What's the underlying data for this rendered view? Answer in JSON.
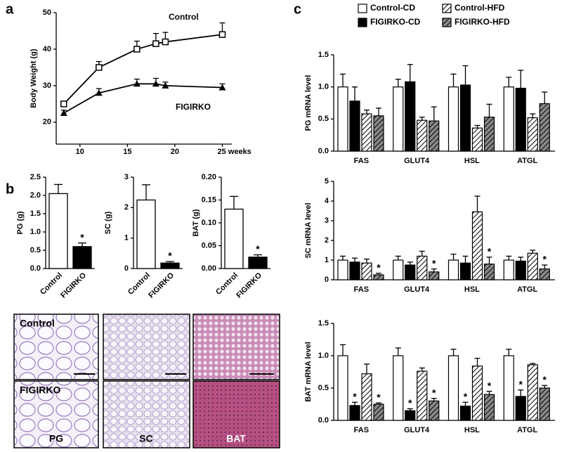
{
  "panel_labels": [
    "a",
    "b",
    "c"
  ],
  "micrographs": {
    "rows": [
      "Control",
      "FIGIRKO"
    ],
    "columns": [
      "PG",
      "SC",
      "BAT"
    ]
  },
  "legend": [
    {
      "name": "Control-CD",
      "color": "#ffffff",
      "hatch": false
    },
    {
      "name": "FIGIRKO-CD",
      "color": "#000000",
      "hatch": false
    },
    {
      "name": "Control-HFD",
      "color": "#ffffff",
      "hatch": true
    },
    {
      "name": "FIGIRKO-HFD",
      "color": "#888888",
      "hatch": true
    }
  ],
  "chart_data": [
    {
      "type": "line",
      "y_label": "Body Weight (g)",
      "x": [
        8.3,
        12,
        16,
        18,
        19,
        25
      ],
      "xlim": [
        7.5,
        26
      ],
      "xticks": [
        10,
        15,
        20,
        {
          "value": 25,
          "label": "25 weeks"
        }
      ],
      "ylim": [
        14,
        50
      ],
      "yticks": [
        20,
        30,
        40,
        50
      ],
      "series": [
        {
          "name": "Control",
          "color": "#000000",
          "marker": "square",
          "values": [
            25,
            35,
            40,
            41.5,
            42,
            44
          ],
          "errors": [
            0.6,
            1.6,
            2.2,
            2.8,
            2.6,
            3.2
          ]
        },
        {
          "name": "FIGIRKO",
          "color": "#000000",
          "marker": "triangle",
          "values": [
            22.5,
            28,
            30.5,
            30.5,
            30,
            29.5
          ],
          "errors": [
            0.8,
            1.2,
            1.3,
            1.5,
            1,
            1
          ]
        }
      ]
    },
    {
      "type": "bar",
      "y_label": "PG (g)",
      "categories": [
        "Control",
        "FIGIRKO"
      ],
      "colors": [
        "#ffffff",
        "#000000"
      ],
      "values": [
        2.05,
        0.6
      ],
      "errors": [
        0.25,
        0.1
      ],
      "stars": [
        null,
        "*"
      ],
      "ylim": [
        0,
        2.5
      ],
      "yticks": [
        {
          "value": 0,
          "label": "0.0"
        },
        0.5,
        {
          "value": 1,
          "label": "1.0"
        },
        1.5,
        {
          "value": 2,
          "label": "2.0"
        },
        2.5
      ]
    },
    {
      "type": "bar",
      "y_label": "SC (g)",
      "categories": [
        "Control",
        "FIGIRKO"
      ],
      "colors": [
        "#ffffff",
        "#000000"
      ],
      "values": [
        2.25,
        0.18
      ],
      "errors": [
        0.5,
        0.05
      ],
      "stars": [
        null,
        "*"
      ],
      "ylim": [
        0,
        3
      ],
      "yticks": [
        0,
        1,
        2,
        3
      ]
    },
    {
      "type": "bar",
      "y_label": "BAT (g)",
      "categories": [
        "Control",
        "FIGIRKO"
      ],
      "colors": [
        "#ffffff",
        "#000000"
      ],
      "values": [
        0.13,
        0.025
      ],
      "errors": [
        0.028,
        0.005
      ],
      "stars": [
        null,
        "*"
      ],
      "ylim": [
        0,
        0.2
      ],
      "yticks": [
        {
          "value": 0,
          "label": "0.00"
        },
        {
          "value": 0.05,
          "label": "0.05"
        },
        {
          "value": 0.1,
          "label": "0.10"
        },
        {
          "value": 0.15,
          "label": "0.15"
        },
        {
          "value": 0.2,
          "label": "0.20"
        }
      ]
    },
    {
      "type": "grouped-bar",
      "y_label": "PG mRNA level",
      "categories": [
        "FAS",
        "GLUT4",
        "HSL",
        "ATGL"
      ],
      "ylim": [
        0,
        1.5
      ],
      "yticks": [
        {
          "value": 0,
          "label": "0.0"
        },
        0.5,
        {
          "value": 1,
          "label": "1.0"
        },
        1.5
      ],
      "series": [
        {
          "values": [
            1,
            1,
            1,
            1
          ],
          "errors": [
            0.2,
            0.12,
            0.2,
            0.15
          ],
          "stars": [
            null,
            null,
            null,
            null
          ]
        },
        {
          "values": [
            0.78,
            1.08,
            1.03,
            0.98
          ],
          "errors": [
            0.22,
            0.27,
            0.3,
            0.28
          ],
          "stars": [
            null,
            null,
            null,
            null
          ]
        },
        {
          "values": [
            0.58,
            0.48,
            0.36,
            0.52
          ],
          "errors": [
            0.06,
            0.05,
            0.04,
            0.06
          ],
          "stars": [
            null,
            null,
            null,
            null
          ]
        },
        {
          "values": [
            0.55,
            0.47,
            0.53,
            0.74
          ],
          "errors": [
            0.12,
            0.22,
            0.2,
            0.18
          ],
          "stars": [
            null,
            null,
            null,
            null
          ]
        }
      ]
    },
    {
      "type": "grouped-bar",
      "y_label": "SC mRNA level",
      "categories": [
        "FAS",
        "GLUT4",
        "HSL",
        "ATGL"
      ],
      "ylim": [
        0,
        5
      ],
      "yticks": [
        0,
        1,
        2,
        3,
        4,
        5
      ],
      "series": [
        {
          "values": [
            1,
            1,
            1,
            1
          ],
          "errors": [
            0.2,
            0.2,
            0.3,
            0.2
          ],
          "stars": [
            null,
            null,
            null,
            null
          ]
        },
        {
          "values": [
            0.9,
            0.75,
            0.85,
            0.95
          ],
          "errors": [
            0.2,
            0.15,
            0.35,
            0.2
          ],
          "stars": [
            null,
            null,
            null,
            null
          ]
        },
        {
          "values": [
            0.85,
            1.2,
            3.45,
            1.35
          ],
          "errors": [
            0.2,
            0.25,
            0.8,
            0.15
          ],
          "stars": [
            null,
            null,
            null,
            null
          ]
        },
        {
          "values": [
            0.25,
            0.4,
            0.8,
            0.55
          ],
          "errors": [
            0.08,
            0.15,
            0.35,
            0.2
          ],
          "stars": [
            "*",
            "*",
            "*",
            "*"
          ]
        }
      ]
    },
    {
      "type": "grouped-bar",
      "y_label": "BAT mRNA level",
      "categories": [
        "FAS",
        "GLUT4",
        "HSL",
        "ATGL"
      ],
      "ylim": [
        0,
        1.5
      ],
      "yticks": [
        {
          "value": 0,
          "label": "0.0"
        },
        0.5,
        {
          "value": 1,
          "label": "1.0"
        },
        1.5
      ],
      "series": [
        {
          "values": [
            1,
            1,
            1,
            1
          ],
          "errors": [
            0.17,
            0.12,
            0.1,
            0.1
          ],
          "stars": [
            null,
            null,
            null,
            null
          ]
        },
        {
          "values": [
            0.23,
            0.15,
            0.22,
            0.37
          ],
          "errors": [
            0.05,
            0.03,
            0.06,
            0.1
          ],
          "stars": [
            "*",
            "*",
            "*",
            "*"
          ]
        },
        {
          "values": [
            0.72,
            0.76,
            0.84,
            0.86
          ],
          "errors": [
            0.15,
            0.05,
            0.12,
            0.02
          ],
          "stars": [
            null,
            null,
            null,
            null
          ]
        },
        {
          "values": [
            0.25,
            0.3,
            0.4,
            0.5
          ],
          "errors": [
            0.02,
            0.04,
            0.05,
            0.04
          ],
          "stars": [
            "*",
            "*",
            "*",
            "*"
          ]
        }
      ]
    }
  ]
}
